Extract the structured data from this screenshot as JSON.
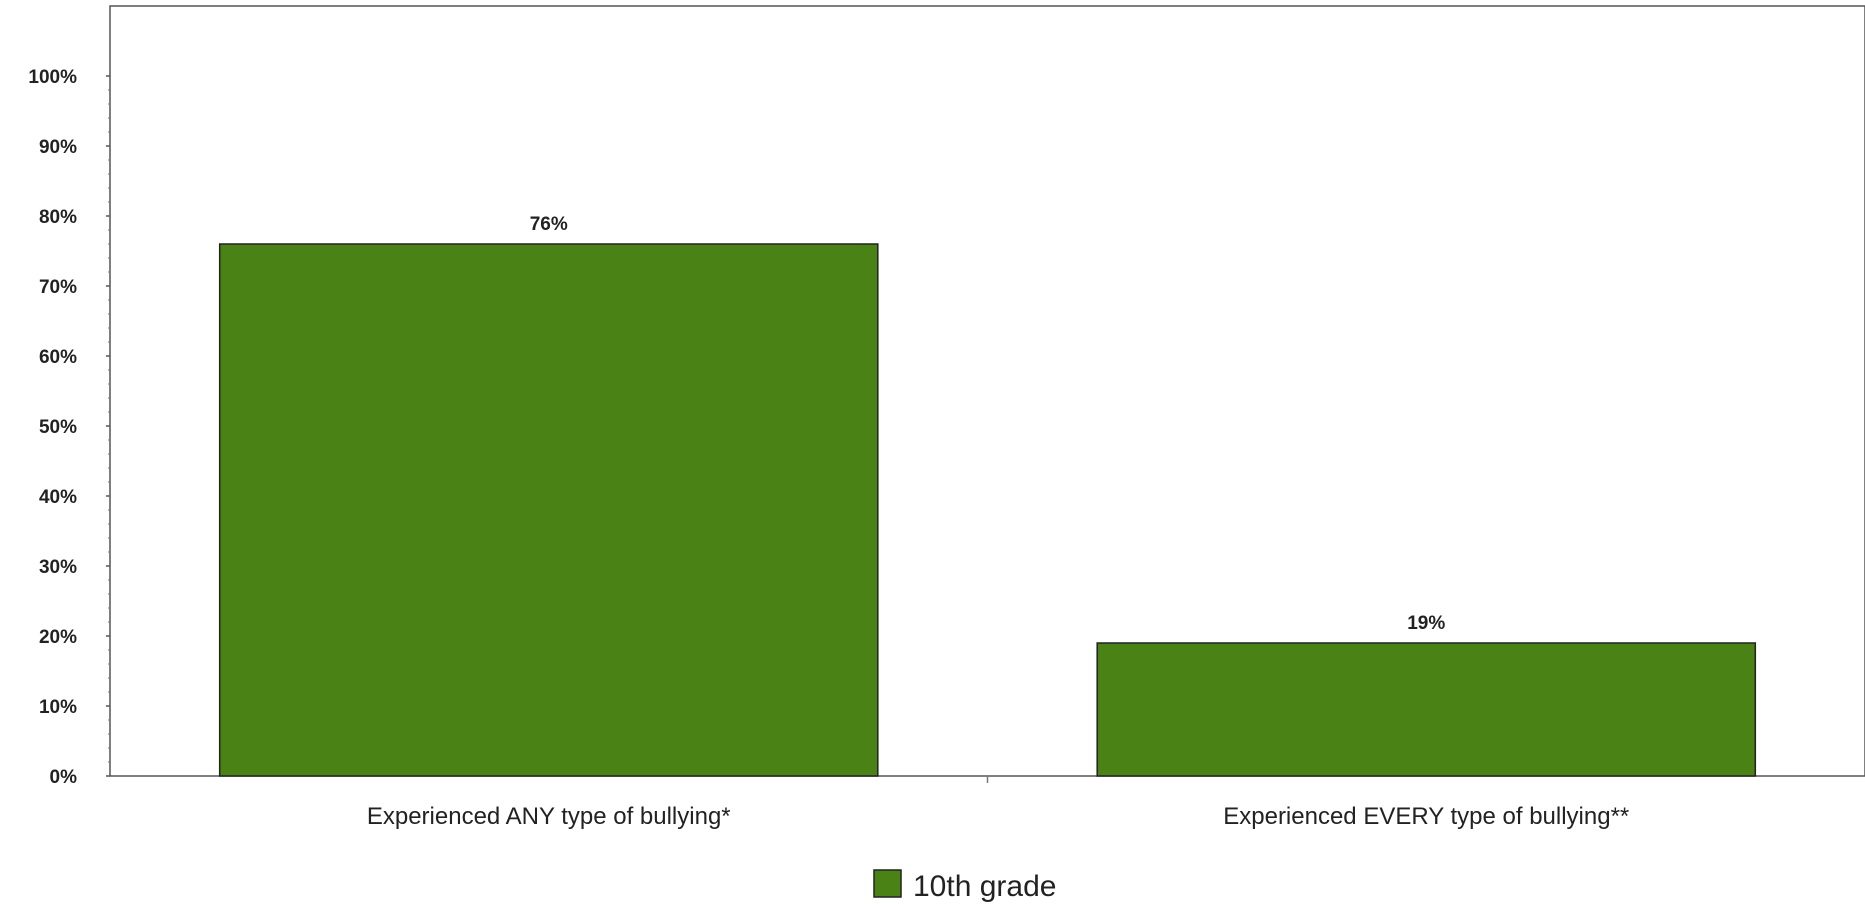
{
  "chart_data": {
    "type": "bar",
    "categories": [
      "Experienced ANY type of bullying*",
      "Experienced EVERY type of bullying**"
    ],
    "series": [
      {
        "name": "10th grade",
        "values": [
          76,
          19
        ],
        "labels": [
          "76%",
          "19%"
        ],
        "color": "#4a8216"
      }
    ],
    "ylim": [
      0,
      100
    ],
    "y_ticks": [
      0,
      10,
      20,
      30,
      40,
      50,
      60,
      70,
      80,
      90,
      100
    ],
    "y_tick_labels": [
      "0%",
      "10%",
      "20%",
      "30%",
      "40%",
      "50%",
      "60%",
      "70%",
      "80%",
      "90%",
      "100%"
    ],
    "grid": false,
    "legend_position": "bottom-center",
    "title": "",
    "xlabel": "",
    "ylabel": ""
  }
}
